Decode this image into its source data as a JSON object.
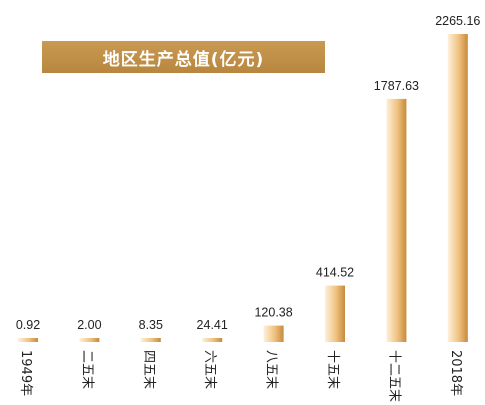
{
  "chart_data": {
    "type": "bar",
    "title": "地区生产总值(亿元)",
    "categories": [
      "1949年",
      "二五末",
      "四五末",
      "六五末",
      "八五末",
      "十五末",
      "十二五末",
      "2018年"
    ],
    "values": [
      0.92,
      2.0,
      8.35,
      24.41,
      120.38,
      414.52,
      1787.63,
      2265.16
    ],
    "value_labels": [
      "0.92",
      "2.00",
      "8.35",
      "24.41",
      "120.38",
      "414.52",
      "1787.63",
      "2265.16"
    ],
    "xlabel": "",
    "ylabel": "",
    "ylim": [
      0,
      2265.16
    ],
    "grid": false,
    "legend": "none",
    "bar_colors": {
      "light": "#fdf1dc",
      "mid": "#f0c27f",
      "dark": "#c68a3c"
    },
    "category_labels_rotated": true
  }
}
